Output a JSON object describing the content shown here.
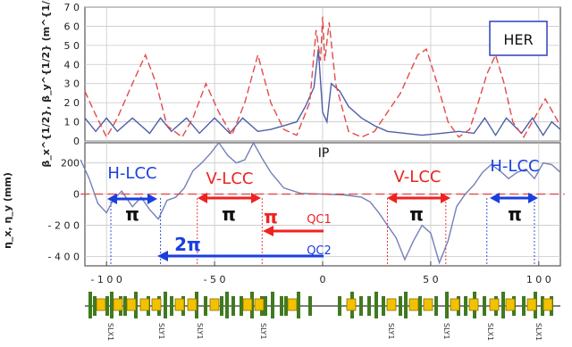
{
  "chart_data": [
    {
      "type": "line",
      "name": "beta_panel",
      "ylabel": "β_x^{1/2}, β_y^{1/2} (m^{1/2})",
      "ylim": [
        0,
        70
      ],
      "yticks": [
        0,
        10,
        20,
        30,
        40,
        50,
        60,
        70
      ],
      "ytick_labels": [
        "0",
        "1 0",
        "2 0",
        "3 0",
        "4 0",
        "5 0",
        "6 0",
        "7 0"
      ],
      "xlim": [
        -110,
        110
      ],
      "grid": true,
      "box_label": "HER",
      "series": [
        {
          "key": "beta_x",
          "color": "#4f5fa8",
          "style": "solid",
          "x": [
            -110,
            -105,
            -100,
            -95,
            -88,
            -80,
            -75,
            -70,
            -63,
            -57,
            -50,
            -43,
            -37,
            -30,
            -24,
            -18,
            -12,
            -8,
            -4,
            -2,
            0,
            2,
            4,
            8,
            12,
            18,
            24,
            30,
            38,
            46,
            55,
            63,
            70,
            75,
            80,
            85,
            92,
            97,
            102,
            106,
            110
          ],
          "y": [
            12,
            5,
            12,
            5,
            12,
            4,
            12,
            5,
            12,
            4,
            12,
            4,
            12,
            5,
            6,
            8,
            10,
            18,
            28,
            48,
            15,
            10,
            30,
            26,
            18,
            12,
            8,
            5,
            4,
            3,
            4,
            5,
            4,
            12,
            3,
            12,
            4,
            12,
            3,
            10,
            6
          ]
        },
        {
          "key": "beta_y",
          "color": "#e34a4a",
          "style": "dashed",
          "x": [
            -110,
            -106,
            -100,
            -95,
            -88,
            -82,
            -77,
            -72,
            -65,
            -60,
            -54,
            -48,
            -42,
            -36,
            -30,
            -24,
            -18,
            -12,
            -6,
            -3,
            -1,
            0,
            1,
            3,
            6,
            12,
            18,
            24,
            30,
            36,
            40,
            44,
            48,
            53,
            58,
            63,
            68,
            72,
            76,
            80,
            84,
            88,
            93,
            98,
            103,
            107,
            110
          ],
          "y": [
            26,
            16,
            2,
            12,
            30,
            45,
            30,
            8,
            2,
            12,
            30,
            15,
            3,
            20,
            45,
            20,
            6,
            3,
            20,
            58,
            42,
            65,
            42,
            62,
            30,
            5,
            2,
            5,
            15,
            25,
            35,
            45,
            48,
            30,
            10,
            2,
            6,
            20,
            35,
            45,
            30,
            10,
            2,
            12,
            22,
            14,
            8
          ]
        }
      ]
    },
    {
      "type": "line",
      "name": "eta_panel",
      "ylabel": "η_x, η_y (mm)",
      "ylim": [
        -460,
        330
      ],
      "yticks": [
        200,
        0,
        -200,
        -400
      ],
      "ytick_labels": [
        "200",
        "0",
        "- 2 0 0",
        "- 4 0 0"
      ],
      "xlim": [
        -110,
        110
      ],
      "xticks": [
        -100,
        -50,
        0,
        50,
        100
      ],
      "xtick_labels": [
        "- 1 0 0",
        "- 5 0",
        "0",
        "5 0",
        "1 0 0"
      ],
      "grid": true,
      "series": [
        {
          "key": "eta_x",
          "color": "#7480b8",
          "style": "solid",
          "x": [
            -112,
            -108,
            -104,
            -100,
            -97,
            -93,
            -88,
            -84,
            -80,
            -76,
            -72,
            -68,
            -64,
            -60,
            -56,
            -52,
            -48,
            -44,
            -40,
            -36,
            -32,
            -28,
            -24,
            -18,
            -10,
            0,
            10,
            18,
            22,
            26,
            30,
            34,
            38,
            42,
            46,
            50,
            54,
            58,
            62,
            66,
            70,
            74,
            78,
            82,
            86,
            90,
            94,
            98,
            102,
            106,
            110
          ],
          "y": [
            220,
            100,
            -60,
            -120,
            -40,
            20,
            -80,
            -20,
            -100,
            -160,
            -40,
            -20,
            40,
            150,
            200,
            260,
            330,
            250,
            200,
            220,
            330,
            230,
            140,
            40,
            5,
            0,
            -5,
            -20,
            -50,
            -120,
            -200,
            -280,
            -420,
            -300,
            -200,
            -250,
            -440,
            -300,
            -80,
            0,
            60,
            140,
            190,
            150,
            100,
            140,
            160,
            100,
            200,
            190,
            140
          ]
        },
        {
          "key": "eta_y",
          "color": "#e34a4a",
          "style": "dashed",
          "x": [
            -112,
            112
          ],
          "y": [
            0,
            0
          ]
        }
      ],
      "annotations": {
        "ip": "IP",
        "h_lcc_left": "H-LCC",
        "v_lcc_left": "V-LCC",
        "v_lcc_right": "V-LCC",
        "h_lcc_right": "H-LCC",
        "pi_1": "π",
        "pi_2": "π",
        "pi_3": "π",
        "pi_4": "π",
        "pi_red": "π",
        "two_pi": "2π",
        "qc1": "QC1",
        "qc2": "QC2"
      },
      "colors": {
        "blue": "#1a3fe0",
        "red": "#ee2222"
      }
    }
  ],
  "lattice": {
    "labels": [
      "SLX1",
      "SLY1",
      "SLY1",
      "SLY1",
      "SLY1",
      "SLY1",
      "SLX1",
      "SLX1"
    ]
  }
}
